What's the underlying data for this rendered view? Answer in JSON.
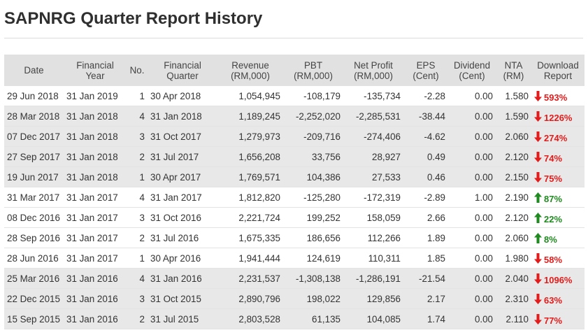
{
  "page": {
    "title": "SAPNRG Quarter Report History"
  },
  "colors": {
    "down": "#e31b1b",
    "up": "#1f8a1f",
    "header_bg": "#e1e1e1",
    "row_shade": "#e8e8e8"
  },
  "table": {
    "headers": {
      "date": "Date",
      "fy_line1": "Financial",
      "fy_line2": "Year",
      "no": "No.",
      "fq_line1": "Financial",
      "fq_line2": "Quarter",
      "rev_line1": "Revenue",
      "rev_line2": "(RM,000)",
      "pbt_line1": "PBT",
      "pbt_line2": "(RM,000)",
      "np_line1": "Net Profit",
      "np_line2": "(RM,000)",
      "eps_line1": "EPS",
      "eps_line2": "(Cent)",
      "div_line1": "Dividend",
      "div_line2": "(Cent)",
      "nta_line1": "NTA",
      "nta_line2": "(RM)",
      "dl_line1": "Download",
      "dl_line2": "Report"
    },
    "rows": [
      {
        "date": "29 Jun 2018",
        "fy": "31 Jan 2019",
        "no": "1",
        "fq": "30 Apr 2018",
        "revenue": "1,054,945",
        "pbt": "-108,179",
        "net_profit": "-135,734",
        "eps": "-2.28",
        "dividend": "0.00",
        "nta": "1.580",
        "change": "593%",
        "direction": "down",
        "shaded": false
      },
      {
        "date": "28 Mar 2018",
        "fy": "31 Jan 2018",
        "no": "4",
        "fq": "31 Jan 2018",
        "revenue": "1,189,245",
        "pbt": "-2,252,020",
        "net_profit": "-2,285,531",
        "eps": "-38.44",
        "dividend": "0.00",
        "nta": "1.590",
        "change": "1226%",
        "direction": "down",
        "shaded": true
      },
      {
        "date": "07 Dec 2017",
        "fy": "31 Jan 2018",
        "no": "3",
        "fq": "31 Oct 2017",
        "revenue": "1,279,973",
        "pbt": "-209,716",
        "net_profit": "-274,406",
        "eps": "-4.62",
        "dividend": "0.00",
        "nta": "2.060",
        "change": "274%",
        "direction": "down",
        "shaded": true
      },
      {
        "date": "27 Sep 2017",
        "fy": "31 Jan 2018",
        "no": "2",
        "fq": "31 Jul 2017",
        "revenue": "1,656,208",
        "pbt": "33,756",
        "net_profit": "28,927",
        "eps": "0.49",
        "dividend": "0.00",
        "nta": "2.120",
        "change": "74%",
        "direction": "down",
        "shaded": true
      },
      {
        "date": "19 Jun 2017",
        "fy": "31 Jan 2018",
        "no": "1",
        "fq": "30 Apr 2017",
        "revenue": "1,769,571",
        "pbt": "104,386",
        "net_profit": "27,533",
        "eps": "0.46",
        "dividend": "0.00",
        "nta": "2.150",
        "change": "75%",
        "direction": "down",
        "shaded": true
      },
      {
        "date": "31 Mar 2017",
        "fy": "31 Jan 2017",
        "no": "4",
        "fq": "31 Jan 2017",
        "revenue": "1,812,820",
        "pbt": "-125,280",
        "net_profit": "-172,319",
        "eps": "-2.89",
        "dividend": "1.00",
        "nta": "2.190",
        "change": "87%",
        "direction": "up",
        "shaded": false
      },
      {
        "date": "08 Dec 2016",
        "fy": "31 Jan 2017",
        "no": "3",
        "fq": "31 Oct 2016",
        "revenue": "2,221,724",
        "pbt": "199,252",
        "net_profit": "158,059",
        "eps": "2.66",
        "dividend": "0.00",
        "nta": "2.120",
        "change": "22%",
        "direction": "up",
        "shaded": false
      },
      {
        "date": "28 Sep 2016",
        "fy": "31 Jan 2017",
        "no": "2",
        "fq": "31 Jul 2016",
        "revenue": "1,675,335",
        "pbt": "186,656",
        "net_profit": "112,266",
        "eps": "1.89",
        "dividend": "0.00",
        "nta": "2.060",
        "change": "8%",
        "direction": "up",
        "shaded": false
      },
      {
        "date": "28 Jun 2016",
        "fy": "31 Jan 2017",
        "no": "1",
        "fq": "30 Apr 2016",
        "revenue": "1,941,444",
        "pbt": "124,619",
        "net_profit": "110,311",
        "eps": "1.85",
        "dividend": "0.00",
        "nta": "1.980",
        "change": "58%",
        "direction": "down",
        "shaded": false
      },
      {
        "date": "25 Mar 2016",
        "fy": "31 Jan 2016",
        "no": "4",
        "fq": "31 Jan 2016",
        "revenue": "2,231,537",
        "pbt": "-1,308,138",
        "net_profit": "-1,286,191",
        "eps": "-21.54",
        "dividend": "0.00",
        "nta": "2.040",
        "change": "1096%",
        "direction": "down",
        "shaded": true
      },
      {
        "date": "22 Dec 2015",
        "fy": "31 Jan 2016",
        "no": "3",
        "fq": "31 Oct 2015",
        "revenue": "2,890,796",
        "pbt": "198,022",
        "net_profit": "129,856",
        "eps": "2.17",
        "dividend": "0.00",
        "nta": "2.310",
        "change": "63%",
        "direction": "down",
        "shaded": true
      },
      {
        "date": "15 Sep 2015",
        "fy": "31 Jan 2016",
        "no": "2",
        "fq": "31 Jul 2015",
        "revenue": "2,803,528",
        "pbt": "61,135",
        "net_profit": "104,085",
        "eps": "1.74",
        "dividend": "0.00",
        "nta": "2.110",
        "change": "77%",
        "direction": "down",
        "shaded": true
      }
    ]
  }
}
